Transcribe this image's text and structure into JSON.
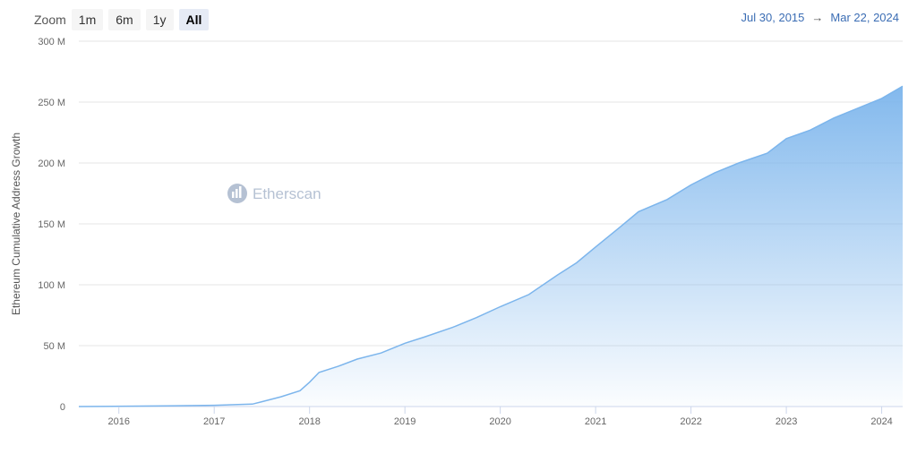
{
  "zoom": {
    "label": "Zoom",
    "buttons": [
      "1m",
      "6m",
      "1y",
      "All"
    ],
    "active": "All"
  },
  "range": {
    "from": "Jul 30, 2015",
    "arrow": "→",
    "to": "Mar 22, 2024"
  },
  "watermark": "Etherscan",
  "colors": {
    "line": "#7cb5ec",
    "grid": "#e6e6e6",
    "range": "#3b6db4"
  },
  "chart_data": {
    "type": "area",
    "title": "",
    "ylabel": "Ethereum Cumulative Address Growth",
    "xlabel": "",
    "ylim": [
      0,
      300
    ],
    "xlim": [
      2015.58,
      2024.22
    ],
    "yticks": [
      {
        "v": 0,
        "label": "0"
      },
      {
        "v": 50,
        "label": "50 M"
      },
      {
        "v": 100,
        "label": "100 M"
      },
      {
        "v": 150,
        "label": "150 M"
      },
      {
        "v": 200,
        "label": "200 M"
      },
      {
        "v": 250,
        "label": "250 M"
      },
      {
        "v": 300,
        "label": "300 M"
      }
    ],
    "xticks": [
      {
        "v": 2016,
        "label": "2016"
      },
      {
        "v": 2017,
        "label": "2017"
      },
      {
        "v": 2018,
        "label": "2018"
      },
      {
        "v": 2019,
        "label": "2019"
      },
      {
        "v": 2020,
        "label": "2020"
      },
      {
        "v": 2021,
        "label": "2021"
      },
      {
        "v": 2022,
        "label": "2022"
      },
      {
        "v": 2023,
        "label": "2023"
      },
      {
        "v": 2024,
        "label": "2024"
      }
    ],
    "x": [
      2015.58,
      2016.5,
      2017.0,
      2017.4,
      2017.5,
      2017.7,
      2017.9,
      2018.0,
      2018.1,
      2018.3,
      2018.5,
      2018.75,
      2019.0,
      2019.2,
      2019.5,
      2019.75,
      2020.0,
      2020.3,
      2020.6,
      2020.8,
      2021.0,
      2021.25,
      2021.45,
      2021.75,
      2022.0,
      2022.25,
      2022.5,
      2022.8,
      2023.0,
      2023.25,
      2023.5,
      2023.75,
      2024.0,
      2024.22
    ],
    "y": [
      0,
      0.5,
      1,
      2,
      4,
      8,
      13,
      20,
      28,
      33,
      39,
      44,
      52,
      57,
      65,
      73,
      82,
      92,
      108,
      118,
      131,
      147,
      160,
      170,
      182,
      192,
      200,
      208,
      220,
      227,
      237,
      245,
      253,
      263
    ],
    "units": "M"
  }
}
